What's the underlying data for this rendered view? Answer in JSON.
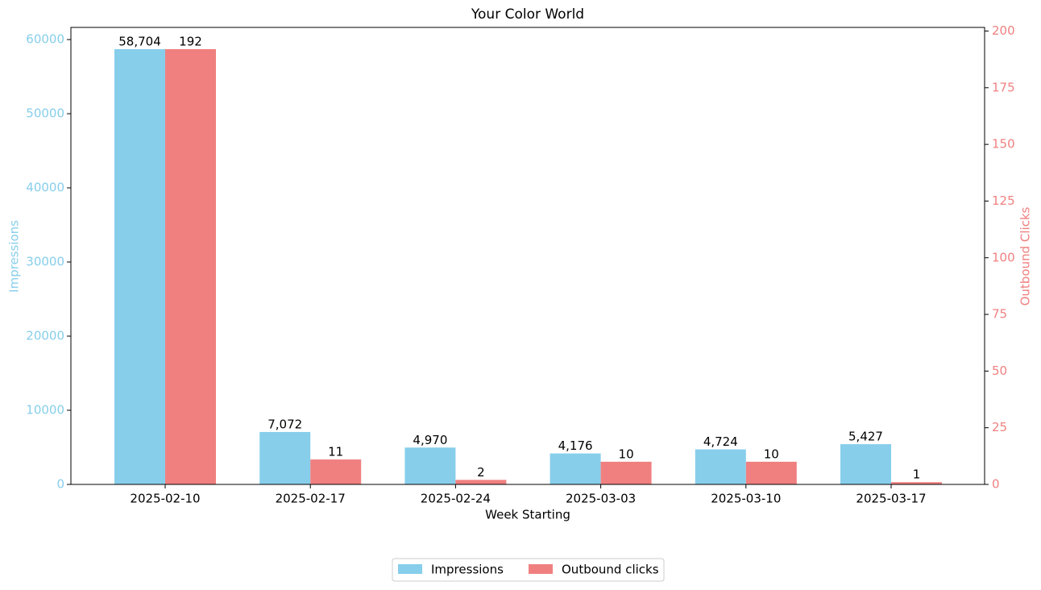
{
  "chart_data": {
    "type": "bar",
    "title": "Your Color World",
    "x_label": "Week Starting",
    "y_label": "Impressions",
    "y2_label": "Outbound Clicks",
    "categories": [
      "2025-02-10",
      "2025-02-17",
      "2025-02-24",
      "2025-03-03",
      "2025-03-10",
      "2025-03-17"
    ],
    "series": [
      {
        "name": "Impressions",
        "color": "#87ceeb",
        "values": [
          58704,
          7072,
          4970,
          4176,
          4724,
          5427
        ],
        "value_labels": [
          "58,704",
          "7,072",
          "4,970",
          "4,176",
          "4,724",
          "5,427"
        ]
      },
      {
        "name": "Outbound clicks",
        "color": "#f08080",
        "axis": "y2",
        "values": [
          192,
          11,
          2,
          10,
          10,
          1
        ]
      }
    ],
    "ylim": [
      0,
      61639
    ],
    "yticks": [
      0,
      10000,
      20000,
      30000,
      40000,
      50000,
      60000
    ],
    "y2lim": [
      0,
      201.6
    ],
    "y2ticks": [
      0,
      25,
      50,
      75,
      100,
      125,
      150,
      175,
      200
    ],
    "legend": "bottom"
  }
}
